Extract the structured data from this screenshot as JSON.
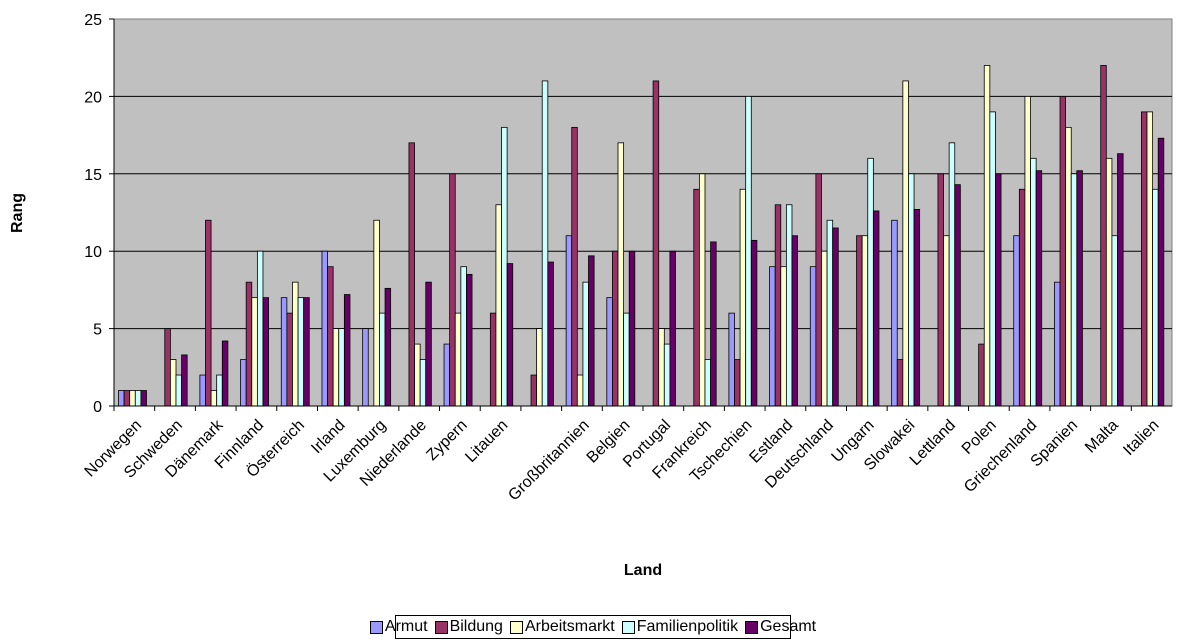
{
  "chart_data": {
    "type": "bar",
    "xlabel": "Land",
    "ylabel": "Rang",
    "ylim": [
      0,
      25
    ],
    "yticks": [
      0,
      5,
      10,
      15,
      20,
      25
    ],
    "grid": true,
    "legend_position": "bottom",
    "categories": [
      "Norwegen",
      "Schweden",
      "Dänemark",
      "Finnland",
      "Österreich",
      "Irland",
      "Luxemburg",
      "Niederlande",
      "Zypern",
      "Litauen",
      "",
      "Großbritannien",
      "Belgien",
      "Portugal",
      "Frankreich",
      "Tschechien",
      "Estland",
      "Deutschland",
      "Ungarn",
      "Slowakei",
      "Lettland",
      "Polen",
      "Griechenland",
      "Spanien",
      "Malta",
      "Italien"
    ],
    "series": [
      {
        "name": "Armut",
        "color": "#9999ff",
        "values": [
          1,
          0,
          2,
          3,
          7,
          10,
          5,
          0,
          4,
          0,
          0,
          11,
          7,
          0,
          0,
          6,
          9,
          9,
          0,
          12,
          0,
          0,
          11,
          8,
          0,
          0
        ]
      },
      {
        "name": "Bildung",
        "color": "#993366",
        "values": [
          1,
          5,
          12,
          8,
          6,
          9,
          0,
          17,
          15,
          6,
          2,
          18,
          10,
          21,
          14,
          3,
          13,
          15,
          11,
          3,
          15,
          4,
          14,
          20,
          22,
          19
        ]
      },
      {
        "name": "Arbeitsmarkt",
        "color": "#ffffcc",
        "values": [
          1,
          3,
          1,
          7,
          8,
          5,
          12,
          4,
          6,
          13,
          5,
          2,
          17,
          5,
          15,
          14,
          9,
          10,
          11,
          21,
          11,
          22,
          20,
          18,
          16,
          19
        ]
      },
      {
        "name": "Familienpolitik",
        "color": "#ccffff",
        "values": [
          1,
          2,
          2,
          10,
          7,
          5,
          6,
          3,
          9,
          18,
          21,
          8,
          6,
          4,
          3,
          20,
          13,
          12,
          16,
          15,
          17,
          19,
          16,
          15,
          11,
          14
        ]
      },
      {
        "name": "Gesamt",
        "color": "#660066",
        "values": [
          1,
          3.3,
          4.2,
          7,
          7,
          7.2,
          7.6,
          8,
          8.5,
          9.2,
          9.3,
          9.7,
          10,
          10,
          10.6,
          10.7,
          11,
          11.5,
          12.6,
          12.7,
          14.3,
          15,
          15.2,
          15.2,
          16.3,
          17.3
        ]
      }
    ]
  }
}
